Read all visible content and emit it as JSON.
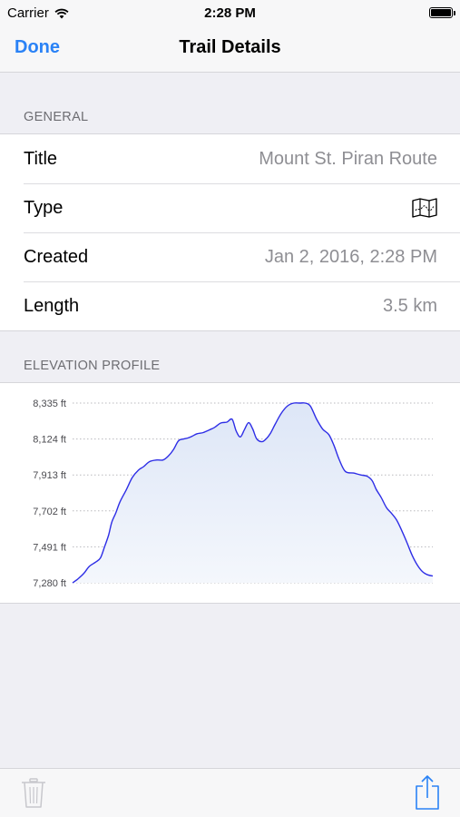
{
  "status_bar": {
    "carrier": "Carrier",
    "time": "2:28 PM",
    "icons": [
      "wifi-icon",
      "battery-icon"
    ]
  },
  "nav": {
    "done_label": "Done",
    "title": "Trail Details"
  },
  "general": {
    "header": "GENERAL",
    "rows": [
      {
        "label": "Title",
        "value": "Mount St. Piran Route"
      },
      {
        "label": "Type",
        "icon": "map-icon"
      },
      {
        "label": "Created",
        "value": "Jan 2, 2016, 2:28 PM"
      },
      {
        "label": "Length",
        "value": "3.5 km"
      }
    ]
  },
  "elevation": {
    "header": "ELEVATION PROFILE"
  },
  "chart_data": {
    "type": "area",
    "x_range": [
      0,
      3.5
    ],
    "ylim": [
      7280,
      8335
    ],
    "y_ticks": [
      "8,335 ft",
      "8,124 ft",
      "7,913 ft",
      "7,702 ft",
      "7,491 ft",
      "7,280 ft"
    ],
    "y_tick_values": [
      8335,
      8124,
      7913,
      7702,
      7491,
      7280
    ],
    "grid": "horizontal dotted",
    "line_color": "#2e2ee6",
    "fill_color": "#dde6f7",
    "series": [
      {
        "x": [
          0.0,
          0.05,
          0.11,
          0.16,
          0.22,
          0.27,
          0.31,
          0.35,
          0.38,
          0.42,
          0.46,
          0.52,
          0.58,
          0.64,
          0.69,
          0.75,
          0.82,
          0.88,
          0.93,
          0.98,
          1.03,
          1.08,
          1.12,
          1.16,
          1.21,
          1.27,
          1.33,
          1.38,
          1.44,
          1.5,
          1.55,
          1.59,
          1.63,
          1.67,
          1.71,
          1.75,
          1.79,
          1.84,
          1.88,
          1.92,
          1.97,
          2.03,
          2.09,
          2.15,
          2.21,
          2.26,
          2.31,
          2.37,
          2.43,
          2.49,
          2.54,
          2.59,
          2.65,
          2.73,
          2.8,
          2.86,
          2.91,
          2.95,
          3.0,
          3.05,
          3.1,
          3.15,
          3.2,
          3.25,
          3.3,
          3.35,
          3.4,
          3.45,
          3.5
        ],
        "y": [
          7280,
          7302,
          7336,
          7375,
          7400,
          7425,
          7491,
          7560,
          7634,
          7690,
          7755,
          7824,
          7898,
          7941,
          7962,
          7992,
          8001,
          8001,
          8024,
          8062,
          8114,
          8124,
          8130,
          8140,
          8155,
          8162,
          8178,
          8192,
          8218,
          8223,
          8240,
          8170,
          8136,
          8179,
          8220,
          8183,
          8124,
          8108,
          8124,
          8155,
          8213,
          8277,
          8319,
          8335,
          8335,
          8335,
          8318,
          8242,
          8182,
          8150,
          8086,
          8004,
          7934,
          7924,
          7913,
          7906,
          7880,
          7829,
          7779,
          7721,
          7687,
          7647,
          7584,
          7515,
          7441,
          7384,
          7345,
          7327,
          7320
        ]
      }
    ]
  },
  "toolbar": {
    "trash_icon": "trash-icon",
    "share_icon": "share-icon",
    "accent": "#2a82f6",
    "disabled": "#c7c7cc"
  }
}
